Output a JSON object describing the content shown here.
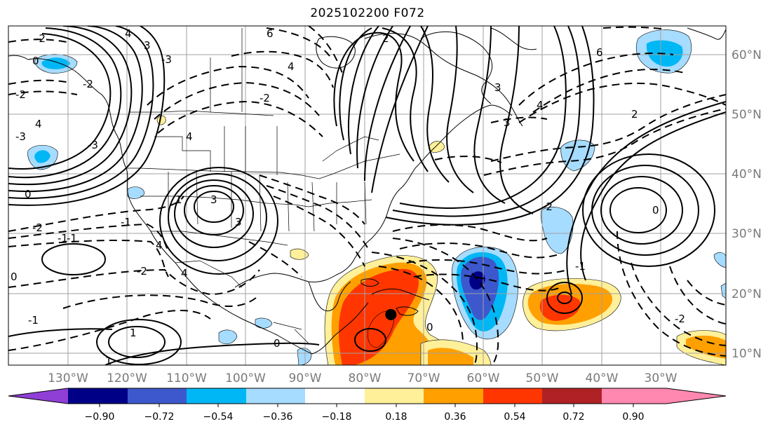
{
  "title": "2025102200 F072",
  "map": {
    "projection": "equirectangular",
    "lon_range": [
      -140,
      -19
    ],
    "lat_range": [
      8,
      65
    ],
    "grid": true,
    "lon_labels": [
      "130°W",
      "120°W",
      "110°W",
      "100°W",
      "90°W",
      "80°W",
      "70°W",
      "60°W",
      "50°W",
      "40°W",
      "30°W"
    ],
    "lat_labels": [
      "60°N",
      "50°N",
      "40°N",
      "30°N",
      "20°N",
      "10°N"
    ],
    "marker": {
      "lon": -75.5,
      "lat": 16.5,
      "label": ""
    }
  },
  "colorbar": {
    "ticks": [
      "−0.90",
      "−0.72",
      "−0.54",
      "−0.36",
      "−0.18",
      "0.18",
      "0.36",
      "0.54",
      "0.72",
      "0.90"
    ],
    "colors": [
      "#8f3fd6",
      "#000087",
      "#3c58cc",
      "#00b7f5",
      "#a6dcff",
      "#ffffff",
      "#fff099",
      "#ffa000",
      "#ff3600",
      "#af2125",
      "#ff88b0"
    ],
    "extend": "both"
  },
  "contour_labels": [
    "4",
    "-2",
    "3",
    "0",
    "-3",
    "-2",
    "6",
    "4",
    "-2",
    "2",
    "3",
    "4",
    "3",
    "6",
    "2",
    "4",
    "-3",
    "-2",
    "-3",
    "4",
    "0",
    "1",
    "3",
    "-1",
    "-2",
    "4",
    "3",
    "4",
    "0",
    "-1",
    "-1",
    "-1",
    "-2",
    "0",
    "1",
    "1",
    "-1",
    "-2",
    "0",
    "0",
    "-2"
  ]
}
